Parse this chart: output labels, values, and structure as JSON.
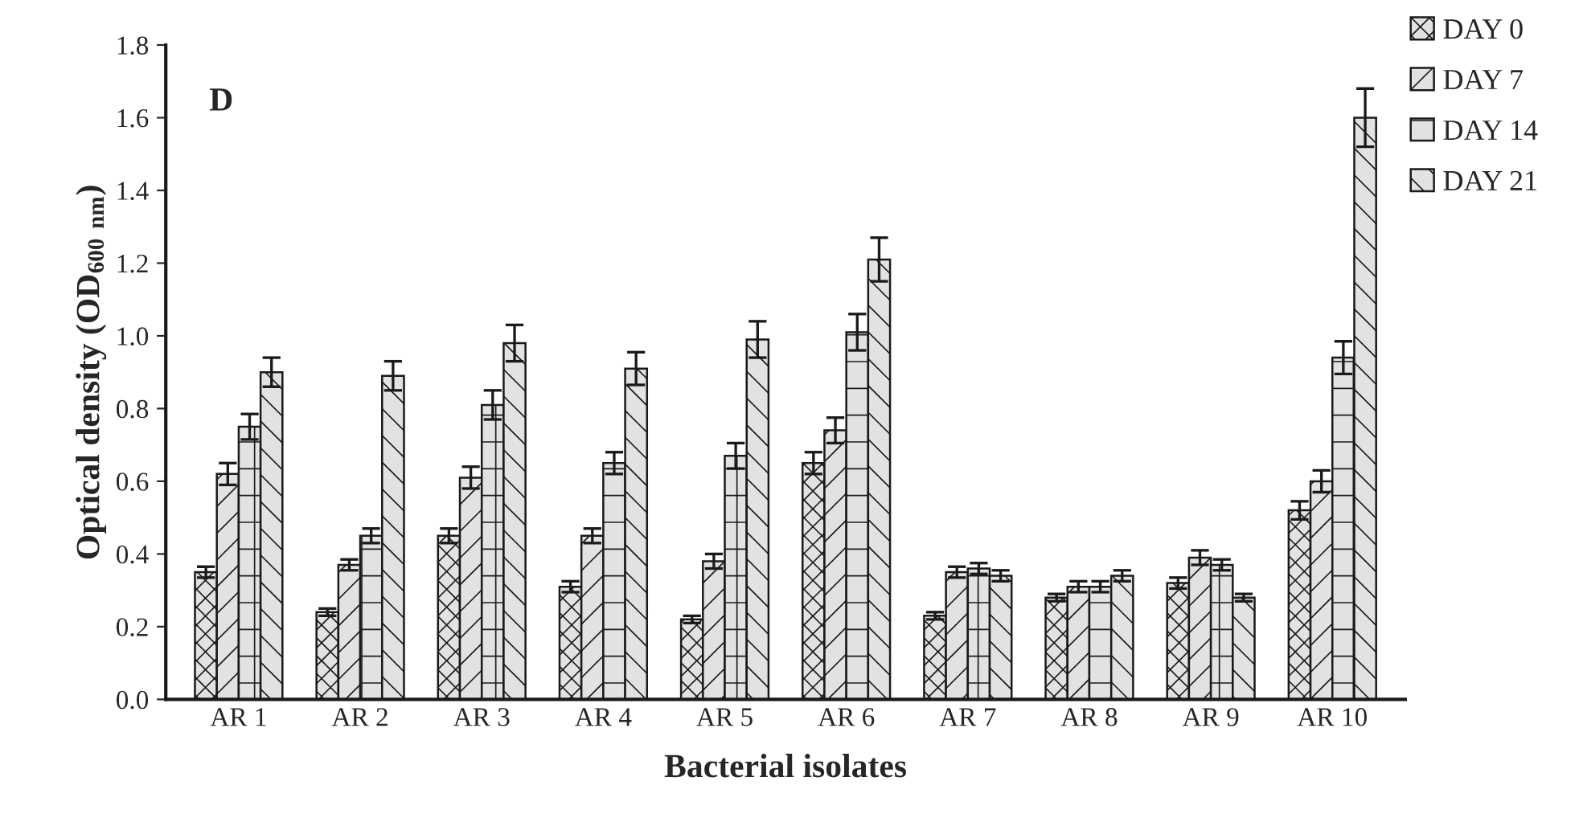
{
  "chart_data": {
    "type": "bar",
    "title": "D",
    "xlabel": "Bacterial isolates",
    "ylabel": "Optical density (OD$_{600 nm}$)",
    "categories": [
      "AR 1",
      "AR 2",
      "AR 3",
      "AR 4",
      "AR 5",
      "AR 6",
      "AR 7",
      "AR 8",
      "AR 9",
      "AR 10"
    ],
    "series": [
      {
        "name": "DAY 0",
        "color": "#1a1a1a",
        "values": [
          0.35,
          0.24,
          0.45,
          0.31,
          0.22,
          0.65,
          0.23,
          0.28,
          0.32,
          0.52
        ],
        "errors": [
          0.015,
          0.01,
          0.02,
          0.015,
          0.01,
          0.03,
          0.01,
          0.01,
          0.015,
          0.025
        ]
      },
      {
        "name": "DAY 7",
        "color": "#1a1a1a",
        "values": [
          0.62,
          0.37,
          0.61,
          0.45,
          0.38,
          0.74,
          0.35,
          0.31,
          0.39,
          0.6
        ],
        "errors": [
          0.03,
          0.015,
          0.03,
          0.02,
          0.02,
          0.035,
          0.015,
          0.015,
          0.02,
          0.03
        ]
      },
      {
        "name": "DAY 14",
        "color": "#1a1a1a",
        "values": [
          0.75,
          0.45,
          0.81,
          0.65,
          0.67,
          1.01,
          0.36,
          0.31,
          0.37,
          0.94
        ],
        "errors": [
          0.035,
          0.02,
          0.04,
          0.03,
          0.035,
          0.05,
          0.015,
          0.015,
          0.015,
          0.045
        ]
      },
      {
        "name": "DAY 21",
        "color": "#1a1a1a",
        "values": [
          0.9,
          0.89,
          0.98,
          0.91,
          0.99,
          1.21,
          0.34,
          0.34,
          0.28,
          1.6
        ],
        "errors": [
          0.04,
          0.04,
          0.05,
          0.045,
          0.05,
          0.06,
          0.015,
          0.015,
          0.01,
          0.08
        ]
      }
    ],
    "ylim": [
      0,
      1.8
    ],
    "yticks": [
      {
        "value": 0,
        "label": "0.0"
      },
      {
        "value": 0.2,
        "label": "0.2"
      },
      {
        "value": 0.4,
        "label": "0.4"
      },
      {
        "value": 0.6,
        "label": "0.6"
      },
      {
        "value": 0.8,
        "label": "0.8"
      },
      {
        "value": 1.0,
        "label": "1.0"
      },
      {
        "value": 1.2,
        "label": "1.2"
      },
      {
        "value": 1.4,
        "label": "1.4"
      },
      {
        "value": 1.6,
        "label": "1.6"
      },
      {
        "value": 1.8,
        "label": "1.8"
      }
    ],
    "grid": false,
    "legend": "top right"
  }
}
